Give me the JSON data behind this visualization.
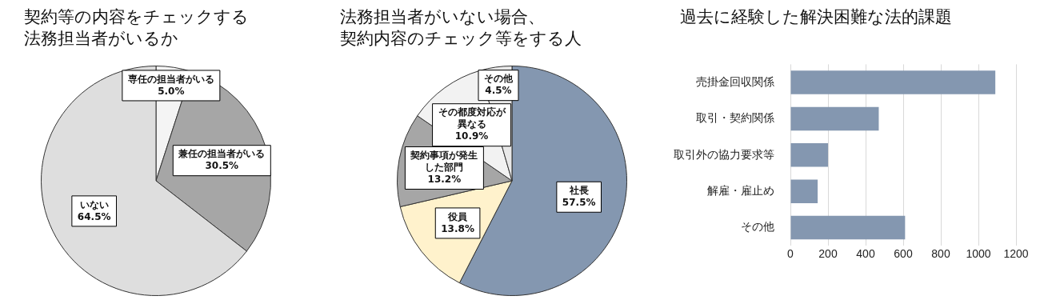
{
  "chart_data": [
    {
      "type": "pie",
      "title": "契約等の内容をチェックする法務担当者がいるか",
      "categories": [
        "専任の担当者がいる",
        "兼任の担当者がいる",
        "いない"
      ],
      "values": [
        5.0,
        30.5,
        64.5
      ],
      "colors": [
        "#f4f4f4",
        "#a6a6a6",
        "#dedede"
      ],
      "value_labels": [
        "5.0%",
        "30.5%",
        "64.5%"
      ]
    },
    {
      "type": "pie",
      "title": "法務担当者がいない場合、契約内容のチェック等をする人",
      "categories": [
        "社長",
        "役員",
        "契約事項が発生した部門",
        "その都度対応が異なる",
        "その他"
      ],
      "values": [
        57.5,
        13.8,
        13.2,
        10.9,
        4.5
      ],
      "colors": [
        "#8497b0",
        "#fff2cc",
        "#a6a6a6",
        "#f2f2f2",
        "#e8e8e8"
      ],
      "value_labels": [
        "57.5%",
        "13.8%",
        "13.2%",
        "10.9%",
        "4.5%"
      ]
    },
    {
      "type": "bar",
      "orientation": "horizontal",
      "title": "過去に経験した解決困難な法的課題",
      "categories": [
        "売掛金回収関係",
        "取引・契約関係",
        "取引外の協力要求等",
        "解雇・雇止め",
        "その他"
      ],
      "values": [
        1090,
        470,
        200,
        145,
        610
      ],
      "color": "#8497b0",
      "xlim": [
        0,
        1200
      ],
      "xticks": [
        0,
        200,
        400,
        600,
        800,
        1000,
        1200
      ],
      "grid": "x"
    }
  ]
}
